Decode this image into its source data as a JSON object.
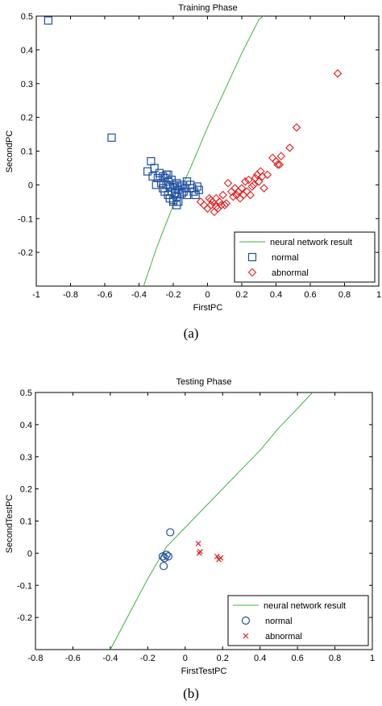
{
  "chart_data": [
    {
      "type": "scatter",
      "title": "Training Phase",
      "xlabel": "FirstPC",
      "ylabel": "SecondPC",
      "xlim": [
        -1,
        1
      ],
      "ylim": [
        -0.3,
        0.5
      ],
      "x_ticks": [
        "-1",
        "-0.8",
        "-0.6",
        "-0.4",
        "-0.2",
        "0",
        "0.2",
        "0.4",
        "0.6",
        "0.8",
        "1"
      ],
      "y_ticks": [
        "-0.2",
        "-0.1",
        "0",
        "0.1",
        "0.2",
        "0.3",
        "0.4",
        "0.5"
      ],
      "grid": false,
      "legend_position": "bottom-right",
      "caption": "(a)",
      "series": [
        {
          "name": "neural network result",
          "kind": "line",
          "color": "#3cb43c",
          "x": [
            -0.38,
            -0.3,
            -0.2,
            -0.1,
            0.0,
            0.1,
            0.2,
            0.3,
            0.38
          ],
          "y": [
            -0.31,
            -0.19,
            -0.06,
            0.05,
            0.17,
            0.28,
            0.39,
            0.49,
            0.52
          ]
        },
        {
          "name": "normal",
          "kind": "square",
          "color": "#1f4fa0",
          "x": [
            -0.93,
            -0.56,
            -0.35,
            -0.33,
            -0.32,
            -0.31,
            -0.3,
            -0.29,
            -0.28,
            -0.27,
            -0.26,
            -0.25,
            -0.25,
            -0.24,
            -0.24,
            -0.23,
            -0.23,
            -0.22,
            -0.22,
            -0.21,
            -0.21,
            -0.2,
            -0.2,
            -0.19,
            -0.19,
            -0.18,
            -0.18,
            -0.17,
            -0.17,
            -0.16,
            -0.15,
            -0.14,
            -0.13,
            -0.12,
            -0.1,
            -0.09,
            -0.08,
            -0.07,
            -0.06,
            -0.05,
            -0.26,
            -0.23,
            -0.2,
            -0.18,
            -0.15,
            -0.12
          ],
          "y": [
            0.487,
            0.14,
            0.04,
            0.07,
            0.025,
            0.05,
            0.0,
            0.02,
            0.035,
            0.005,
            -0.01,
            0.02,
            -0.02,
            0.03,
            0.0,
            -0.03,
            0.01,
            -0.005,
            -0.04,
            0.015,
            -0.02,
            0.0,
            -0.045,
            -0.01,
            -0.025,
            0.005,
            -0.035,
            -0.015,
            -0.05,
            -0.005,
            0.0,
            -0.02,
            -0.01,
            -0.03,
            0.0,
            -0.01,
            -0.02,
            -0.03,
            -0.005,
            -0.015,
            0.025,
            0.03,
            -0.05,
            -0.06,
            -0.025,
            0.01
          ]
        },
        {
          "name": "abnormal",
          "kind": "diamond",
          "color": "#e02020",
          "x": [
            -0.04,
            -0.02,
            0.0,
            0.01,
            0.02,
            0.03,
            0.04,
            0.05,
            0.06,
            0.07,
            0.08,
            0.09,
            0.1,
            0.12,
            0.14,
            0.15,
            0.16,
            0.17,
            0.18,
            0.19,
            0.2,
            0.21,
            0.22,
            0.23,
            0.24,
            0.25,
            0.26,
            0.27,
            0.28,
            0.29,
            0.3,
            0.31,
            0.32,
            0.33,
            0.35,
            0.38,
            0.4,
            0.41,
            0.42,
            0.43,
            0.48,
            0.52,
            0.76,
            0.02,
            0.05,
            0.11
          ],
          "y": [
            -0.05,
            -0.06,
            -0.07,
            -0.04,
            -0.06,
            -0.05,
            -0.08,
            -0.04,
            -0.07,
            -0.05,
            -0.06,
            -0.03,
            -0.06,
            0.005,
            -0.02,
            -0.035,
            -0.01,
            -0.03,
            -0.02,
            -0.04,
            -0.01,
            -0.03,
            0.01,
            -0.02,
            0.015,
            -0.03,
            -0.005,
            0.0,
            0.02,
            0.03,
            0.01,
            0.04,
            0.025,
            -0.01,
            0.03,
            0.08,
            0.07,
            0.06,
            0.06,
            0.085,
            0.11,
            0.17,
            0.33,
            -0.045,
            -0.065,
            -0.055
          ]
        }
      ]
    },
    {
      "type": "scatter",
      "title": "Testing Phase",
      "xlabel": "FirstTestPC",
      "ylabel": "SecondTestPC",
      "xlim": [
        -0.8,
        1
      ],
      "ylim": [
        -0.3,
        0.5
      ],
      "x_ticks": [
        "-0.8",
        "-0.6",
        "-0.4",
        "-0.2",
        "0",
        "0.2",
        "0.4",
        "0.6",
        "0.8",
        "1"
      ],
      "y_ticks": [
        "-0.2",
        "-0.1",
        "0",
        "0.1",
        "0.2",
        "0.3",
        "0.4",
        "0.5"
      ],
      "grid": false,
      "legend_position": "bottom-right",
      "caption": "(b)",
      "series": [
        {
          "name": "neural network result",
          "kind": "line",
          "color": "#3cb43c",
          "x": [
            -0.4,
            -0.3,
            -0.2,
            -0.1,
            0.0,
            0.1,
            0.2,
            0.3,
            0.4,
            0.5,
            0.6,
            0.68
          ],
          "y": [
            -0.3,
            -0.19,
            -0.08,
            0.02,
            0.08,
            0.14,
            0.2,
            0.26,
            0.32,
            0.39,
            0.45,
            0.5
          ]
        },
        {
          "name": "normal",
          "kind": "circle",
          "color": "#1f4fa0",
          "x": [
            -0.12,
            -0.11,
            -0.115,
            -0.1,
            -0.09,
            -0.08
          ],
          "y": [
            -0.01,
            -0.015,
            -0.04,
            -0.005,
            -0.01,
            0.065
          ]
        },
        {
          "name": "abnormal",
          "kind": "cross",
          "color": "#e02020",
          "x": [
            0.07,
            0.08,
            0.075,
            0.17,
            0.18,
            0.19
          ],
          "y": [
            0.03,
            0.005,
            0.0,
            -0.01,
            -0.02,
            -0.015
          ]
        }
      ]
    }
  ]
}
